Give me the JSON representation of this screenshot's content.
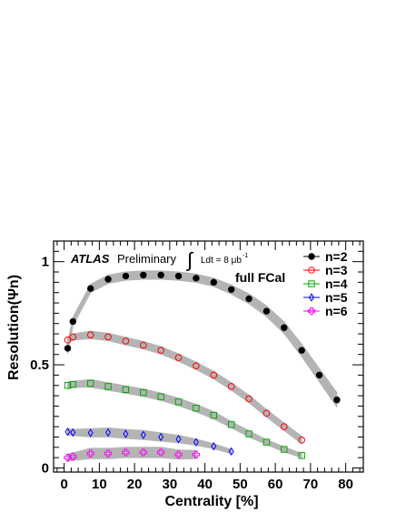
{
  "chart_data": {
    "type": "scatter",
    "xlabel": "Centrality [%]",
    "ylabel": "Resolution(Ψn)",
    "xlim": [
      -3,
      85
    ],
    "ylim": [
      -0.02,
      1.1
    ],
    "x_ticks": [
      "0",
      "10",
      "20",
      "30",
      "40",
      "50",
      "60",
      "70",
      "80"
    ],
    "y_ticks": [
      "0",
      "0.5",
      "1"
    ],
    "legend_position": "top-right",
    "annotations": {
      "experiment": "ATLAS",
      "status": "Preliminary",
      "integral_sign": "∫",
      "luminosity": "Ldt = 8 μb",
      "luminosity_exp": "-1",
      "detector": "full FCal"
    },
    "series": [
      {
        "name": "n=2",
        "color": "#000000",
        "marker": "filled-circle",
        "x": [
          1,
          2.5,
          7.5,
          12.5,
          17.5,
          22.5,
          27.5,
          32.5,
          37.5,
          42.5,
          47.5,
          52.5,
          57.5,
          62.5,
          67.5,
          72.5,
          77.5
        ],
        "y": [
          0.58,
          0.71,
          0.87,
          0.915,
          0.93,
          0.935,
          0.935,
          0.93,
          0.92,
          0.9,
          0.865,
          0.82,
          0.76,
          0.68,
          0.57,
          0.45,
          0.33
        ],
        "band": [
          0.025,
          0.02,
          0.02,
          0.02,
          0.02,
          0.02,
          0.02,
          0.02,
          0.02,
          0.02,
          0.022,
          0.024,
          0.026,
          0.028,
          0.03,
          0.032,
          0.035
        ]
      },
      {
        "name": "n=3",
        "color": "#ff0000",
        "marker": "open-circle",
        "x": [
          1,
          2.5,
          7.5,
          12.5,
          17.5,
          22.5,
          27.5,
          32.5,
          37.5,
          42.5,
          47.5,
          52.5,
          57.5,
          62.5,
          67.5
        ],
        "y": [
          0.62,
          0.635,
          0.645,
          0.635,
          0.615,
          0.595,
          0.57,
          0.535,
          0.495,
          0.45,
          0.395,
          0.335,
          0.265,
          0.2,
          0.135
        ],
        "band": [
          0.015,
          0.015,
          0.018,
          0.018,
          0.018,
          0.018,
          0.018,
          0.018,
          0.018,
          0.018,
          0.018,
          0.018,
          0.018,
          0.018,
          0.018
        ]
      },
      {
        "name": "n=4",
        "color": "#00aa00",
        "marker": "open-square",
        "x": [
          1,
          2.5,
          7.5,
          12.5,
          17.5,
          22.5,
          27.5,
          32.5,
          37.5,
          42.5,
          47.5,
          52.5,
          57.5,
          62.5,
          67.5
        ],
        "y": [
          0.4,
          0.405,
          0.41,
          0.395,
          0.38,
          0.365,
          0.345,
          0.32,
          0.29,
          0.255,
          0.21,
          0.165,
          0.125,
          0.09,
          0.06
        ],
        "band": [
          0.015,
          0.015,
          0.018,
          0.018,
          0.018,
          0.018,
          0.018,
          0.018,
          0.018,
          0.018,
          0.015,
          0.015,
          0.012,
          0.012,
          0.01
        ]
      },
      {
        "name": "n=5",
        "color": "#0000ff",
        "marker": "open-diamond",
        "x": [
          1,
          2.5,
          7.5,
          12.5,
          17.5,
          22.5,
          27.5,
          32.5,
          37.5,
          42.5,
          47.5
        ],
        "y": [
          0.175,
          0.172,
          0.17,
          0.172,
          0.165,
          0.16,
          0.15,
          0.14,
          0.125,
          0.105,
          0.08
        ],
        "band": [
          0.015,
          0.015,
          0.02,
          0.022,
          0.022,
          0.022,
          0.02,
          0.018,
          0.015,
          0.012,
          0.01
        ]
      },
      {
        "name": "n=6",
        "color": "#ff00ff",
        "marker": "open-cross",
        "x": [
          1,
          2.5,
          7.5,
          12.5,
          17.5,
          22.5,
          27.5,
          32.5,
          37.5
        ],
        "y": [
          0.05,
          0.055,
          0.07,
          0.07,
          0.075,
          0.075,
          0.075,
          0.065,
          0.065
        ],
        "band": [
          0.018,
          0.018,
          0.025,
          0.025,
          0.025,
          0.025,
          0.025,
          0.022,
          0.02
        ]
      }
    ]
  }
}
